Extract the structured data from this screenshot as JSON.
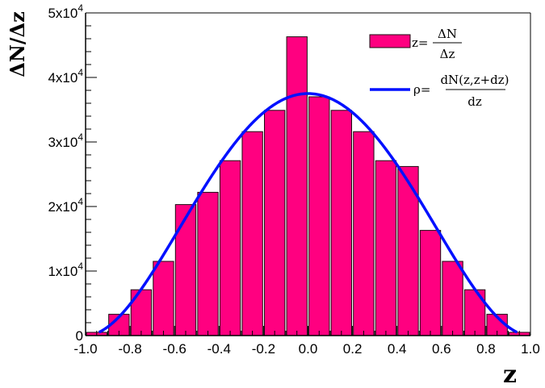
{
  "chart_data": {
    "type": "bar",
    "xlabel": "z",
    "ylabel": "ΔN/Δz",
    "xlim": [
      -1.0,
      1.0
    ],
    "ylim": [
      0,
      50000
    ],
    "x_tick_labels": [
      "-1.0",
      "-0.8",
      "-0.6",
      "-0.4",
      "-0.2",
      "0.0",
      "0.2",
      "0.4",
      "0.6",
      "0.8",
      "1.0"
    ],
    "y_tick_labels": [
      {
        "mantissa": "0",
        "exponent": ""
      },
      {
        "mantissa": "1x10",
        "exponent": "4"
      },
      {
        "mantissa": "2x10",
        "exponent": "4"
      },
      {
        "mantissa": "3x10",
        "exponent": "4"
      },
      {
        "mantissa": "4x10",
        "exponent": "4"
      },
      {
        "mantissa": "5x10",
        "exponent": "4"
      }
    ],
    "bin_edges": [
      -1.0,
      -0.9,
      -0.8,
      -0.7,
      -0.6,
      -0.5,
      -0.4,
      -0.3,
      -0.2,
      -0.1,
      0.0,
      0.1,
      0.2,
      0.3,
      0.4,
      0.5,
      0.6,
      0.7,
      0.8,
      0.9,
      1.0
    ],
    "values": [
      500,
      3300,
      7100,
      11500,
      20300,
      22200,
      27100,
      31600,
      34900,
      46300,
      37000,
      34900,
      31600,
      27100,
      26200,
      16300,
      11500,
      7100,
      3300,
      500
    ],
    "curve": {
      "peak": 37500,
      "formula": "peak*(1-z^2)^2 for |z|<0.94"
    },
    "legend": {
      "position": "top-right",
      "entries": [
        {
          "kind": "box",
          "lhs": "z=",
          "numerator": "ΔN",
          "denominator": "Δz"
        },
        {
          "kind": "line",
          "lhs": "ρ=",
          "numerator": "dN(z,z+dz)",
          "denominator": "dz"
        }
      ]
    },
    "colors": {
      "bar_fill": "#ff0080",
      "bar_stroke": "#1a0a10",
      "curve": "#0010ff",
      "axis": "#000000"
    },
    "grid": false
  }
}
